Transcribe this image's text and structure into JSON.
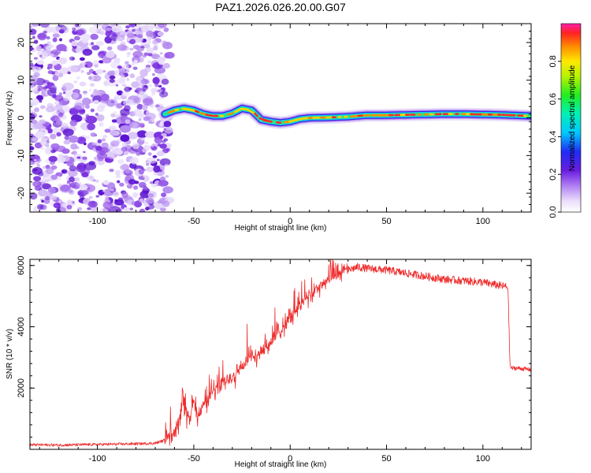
{
  "chart_data": [
    {
      "type": "heatmap",
      "title": "PAZ1.2026.026.20.00.G07",
      "xlabel": "Height of straight line (km)",
      "ylabel": "Frequency (Hz)",
      "xlim": [
        -135,
        125
      ],
      "ylim": [
        -25,
        25
      ],
      "xticks": [
        -100,
        -50,
        0,
        50,
        100
      ],
      "yticks": [
        -20,
        -10,
        0,
        10,
        20
      ],
      "noise_region_x": [
        -135,
        -65
      ],
      "ridge": {
        "x": [
          -65,
          -60,
          -55,
          -50,
          -45,
          -40,
          -35,
          -30,
          -25,
          -20,
          -15,
          -10,
          -5,
          0,
          5,
          10,
          20,
          30,
          40,
          50,
          60,
          70,
          80,
          90,
          100,
          110,
          125
        ],
        "frequency": [
          1.0,
          2.0,
          2.5,
          2.0,
          1.0,
          0.5,
          0.5,
          1.2,
          2.5,
          2.0,
          -0.5,
          -1.0,
          -1.3,
          -1.0,
          -0.3,
          0.0,
          0.1,
          0.3,
          0.7,
          0.7,
          0.8,
          0.9,
          1.0,
          1.0,
          0.9,
          0.8,
          0.5
        ]
      },
      "colorbar": {
        "label": "Normalized spectral amplitude",
        "ticks": [
          "0.0",
          "0.2",
          "0.4",
          "0.6",
          "0.8"
        ]
      }
    },
    {
      "type": "line",
      "xlabel": "Height of straight line (km)",
      "ylabel": "SNR (10 * v/v)",
      "xlim": [
        -135,
        125
      ],
      "ylim": [
        0,
        6200
      ],
      "xticks": [
        -100,
        -50,
        0,
        50,
        100
      ],
      "yticks": [
        2000,
        4000,
        6000
      ],
      "series": [
        {
          "name": "SNR",
          "color": "#ee2a2a",
          "x": [
            -135,
            -120,
            -100,
            -80,
            -70,
            -65,
            -60,
            -58,
            -56,
            -54,
            -52,
            -50,
            -48,
            -45,
            -42,
            -40,
            -35,
            -30,
            -25,
            -20,
            -15,
            -10,
            -5,
            0,
            5,
            10,
            15,
            20,
            25,
            30,
            35,
            40,
            50,
            60,
            70,
            80,
            90,
            100,
            108,
            113,
            114,
            114.5,
            118,
            125
          ],
          "values": [
            150,
            140,
            160,
            180,
            200,
            300,
            600,
            1000,
            1500,
            1200,
            900,
            1600,
            1000,
            1500,
            1700,
            1900,
            2200,
            2400,
            2700,
            3000,
            3200,
            3500,
            3900,
            4300,
            4700,
            5000,
            5300,
            5500,
            5700,
            5850,
            5950,
            5900,
            5850,
            5750,
            5650,
            5550,
            5500,
            5450,
            5350,
            5300,
            2800,
            2650,
            2650,
            2600
          ]
        }
      ]
    }
  ]
}
